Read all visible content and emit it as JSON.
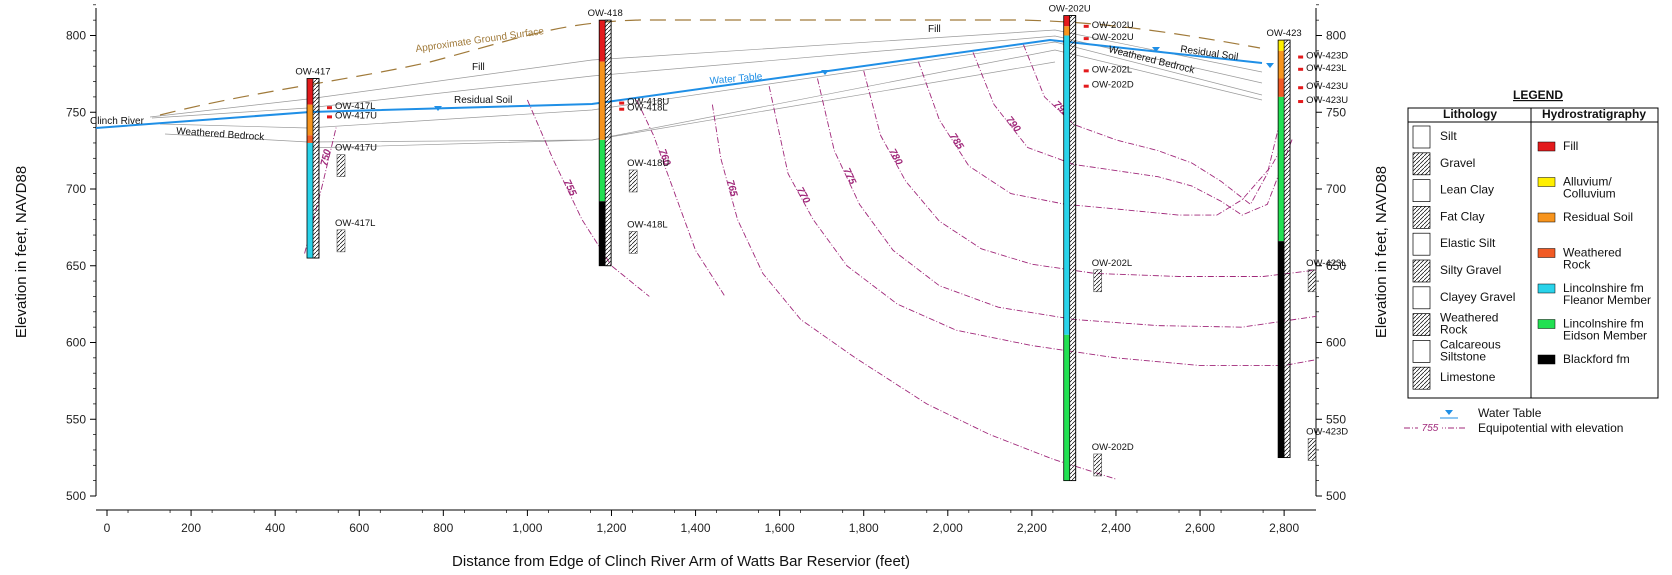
{
  "axes": {
    "x_label": "Distance from Edge of Clinch River Arm of Watts Bar Reservior (feet)",
    "y_label_left": "Elevation in feet, NAVD88",
    "y_label_right": "Elevation in feet, NAVD88",
    "x_range": [
      0,
      2800
    ],
    "y_range": [
      500,
      820
    ],
    "x_ticks": [
      "0",
      "200",
      "400",
      "600",
      "800",
      "1,000",
      "1,200",
      "1,400",
      "1,600",
      "1,800",
      "2,000",
      "2,200",
      "2,400",
      "2,600",
      "2,800"
    ],
    "y_ticks": [
      "500",
      "550",
      "600",
      "650",
      "700",
      "750",
      "800"
    ]
  },
  "colors": {
    "water_table": "#1f8fe6",
    "ground_surface": "#a07a3a",
    "equipotential": "#a0287a",
    "fill": "#e31a1c",
    "alluvium": "#ffef00",
    "residual_soil": "#f7941d",
    "weathered_rock": "#f15a24",
    "lincolnshire_fleanor": "#29d3ea",
    "lincolnshire_eidson": "#22e052",
    "blackford": "#000000"
  },
  "annotations": {
    "ground_surface": "Approximate Ground Surface",
    "water_table": "Water Table",
    "clinch_river": "Clinch River",
    "fill_1": "Fill",
    "fill_2": "Fill",
    "residual_soil_1": "Residual Soil",
    "residual_soil_2": "Residual Soil",
    "weathered_bedrock_1": "Weathered Bedrock",
    "weathered_bedrock_2": "Weathered Bedrock"
  },
  "wells": [
    {
      "name": "OW-417",
      "x": 490,
      "top": 772,
      "bottom": 655,
      "units": [
        {
          "from": 772,
          "to": 755,
          "color": "fill"
        },
        {
          "from": 755,
          "to": 735,
          "color": "residual_soil"
        },
        {
          "from": 735,
          "to": 730,
          "color": "weathered_rock"
        },
        {
          "from": 730,
          "to": 655,
          "color": "lincolnshire_fleanor"
        }
      ],
      "screens": [
        {
          "name": "OW-417L",
          "elev": 752
        },
        {
          "name": "OW-417U",
          "elev": 746
        },
        {
          "name": "OW-417U",
          "elev": 725
        },
        {
          "name": "OW-417L",
          "elev": 676
        }
      ]
    },
    {
      "name": "OW-418",
      "x": 1185,
      "top": 810,
      "bottom": 650,
      "units": [
        {
          "from": 810,
          "to": 783,
          "color": "fill"
        },
        {
          "from": 783,
          "to": 732,
          "color": "residual_soil"
        },
        {
          "from": 732,
          "to": 692,
          "color": "lincolnshire_eidson"
        },
        {
          "from": 692,
          "to": 650,
          "color": "blackford"
        }
      ],
      "screens": [
        {
          "name": "OW-418U",
          "elev": 755
        },
        {
          "name": "OW-418L",
          "elev": 751
        },
        {
          "name": "OW-418U",
          "elev": 715
        },
        {
          "name": "OW-418L",
          "elev": 675
        }
      ]
    },
    {
      "name": "OW-202U",
      "x": 2290,
      "top": 813,
      "bottom": 510,
      "units": [
        {
          "from": 813,
          "to": 806,
          "color": "fill"
        },
        {
          "from": 806,
          "to": 800,
          "color": "residual_soil"
        },
        {
          "from": 800,
          "to": 605,
          "color": "lincolnshire_fleanor"
        },
        {
          "from": 605,
          "to": 510,
          "color": "lincolnshire_eidson"
        }
      ],
      "screens": [
        {
          "name": "OW-202U",
          "elev": 805
        },
        {
          "name": "OW-202U",
          "elev": 797
        },
        {
          "name": "OW-202L",
          "elev": 776
        },
        {
          "name": "OW-202D",
          "elev": 766
        },
        {
          "name": "OW-202L",
          "elev": 650
        },
        {
          "name": "OW-202D",
          "elev": 530
        }
      ]
    },
    {
      "name": "OW-423",
      "x": 2800,
      "top": 797,
      "bottom": 525,
      "units": [
        {
          "from": 797,
          "to": 790,
          "color": "alluvium"
        },
        {
          "from": 790,
          "to": 772,
          "color": "residual_soil"
        },
        {
          "from": 772,
          "to": 760,
          "color": "weathered_rock"
        },
        {
          "from": 760,
          "to": 666,
          "color": "lincolnshire_eidson"
        },
        {
          "from": 666,
          "to": 525,
          "color": "blackford"
        }
      ],
      "screens": [
        {
          "name": "OW-423D",
          "elev": 785
        },
        {
          "name": "OW-423L",
          "elev": 777
        },
        {
          "name": "OW-423U",
          "elev": 765
        },
        {
          "name": "OW-423U",
          "elev": 756
        },
        {
          "name": "OW-423L",
          "elev": 650
        },
        {
          "name": "OW-423D",
          "elev": 540
        }
      ]
    }
  ],
  "equipotentials": [
    {
      "label": "750",
      "points": [
        [
          470,
          658
        ],
        [
          510,
          700
        ],
        [
          545,
          740
        ]
      ]
    },
    {
      "label": "755",
      "points": [
        [
          1000,
          758
        ],
        [
          1060,
          720
        ],
        [
          1130,
          680
        ],
        [
          1200,
          650
        ],
        [
          1290,
          630
        ]
      ]
    },
    {
      "label": "760",
      "points": [
        [
          1260,
          758
        ],
        [
          1300,
          735
        ],
        [
          1340,
          705
        ],
        [
          1400,
          660
        ],
        [
          1470,
          630
        ]
      ]
    },
    {
      "label": "765",
      "points": [
        [
          1440,
          755
        ],
        [
          1460,
          720
        ],
        [
          1500,
          680
        ],
        [
          1560,
          645
        ],
        [
          1650,
          615
        ],
        [
          1780,
          590
        ],
        [
          1950,
          560
        ],
        [
          2100,
          540
        ],
        [
          2250,
          524
        ],
        [
          2400,
          511
        ]
      ]
    },
    {
      "label": "770",
      "points": [
        [
          1575,
          767
        ],
        [
          1620,
          710
        ],
        [
          1680,
          680
        ],
        [
          1760,
          650
        ],
        [
          1880,
          625
        ],
        [
          2020,
          608
        ],
        [
          2200,
          598
        ],
        [
          2400,
          590
        ],
        [
          2600,
          585
        ],
        [
          2800,
          585
        ],
        [
          2900,
          590
        ]
      ]
    },
    {
      "label": "775",
      "points": [
        [
          1690,
          772
        ],
        [
          1730,
          725
        ],
        [
          1790,
          690
        ],
        [
          1870,
          660
        ],
        [
          1980,
          637
        ],
        [
          2120,
          623
        ],
        [
          2300,
          615
        ],
        [
          2500,
          611
        ],
        [
          2700,
          610
        ],
        [
          2900,
          618
        ]
      ]
    },
    {
      "label": "780",
      "points": [
        [
          1800,
          777
        ],
        [
          1840,
          735
        ],
        [
          1900,
          705
        ],
        [
          1980,
          679
        ],
        [
          2080,
          661
        ],
        [
          2200,
          651
        ],
        [
          2350,
          645
        ],
        [
          2550,
          643
        ],
        [
          2750,
          643
        ],
        [
          2900,
          648
        ]
      ]
    },
    {
      "label": "785",
      "points": [
        [
          1930,
          783
        ],
        [
          1980,
          745
        ],
        [
          2050,
          715
        ],
        [
          2150,
          697
        ],
        [
          2280,
          690
        ],
        [
          2400,
          687
        ],
        [
          2550,
          683
        ],
        [
          2640,
          683
        ],
        [
          2700,
          693
        ],
        [
          2770,
          715
        ],
        [
          2800,
          730
        ]
      ]
    },
    {
      "label": "790",
      "points": [
        [
          2060,
          789
        ],
        [
          2110,
          755
        ],
        [
          2190,
          727
        ],
        [
          2300,
          716
        ],
        [
          2400,
          712
        ],
        [
          2500,
          708
        ],
        [
          2580,
          702
        ],
        [
          2650,
          692
        ],
        [
          2700,
          683
        ],
        [
          2760,
          690
        ],
        [
          2820,
          733
        ]
      ]
    },
    {
      "label": "795",
      "points": [
        [
          2180,
          794
        ],
        [
          2230,
          760
        ],
        [
          2300,
          742
        ],
        [
          2400,
          732
        ],
        [
          2500,
          725
        ],
        [
          2580,
          717
        ],
        [
          2650,
          705
        ],
        [
          2720,
          690
        ],
        [
          2760,
          710
        ],
        [
          2800,
          755
        ]
      ]
    }
  ],
  "contour_label_elevation": "795",
  "legend": {
    "title": "LEGEND",
    "lithology_header": "Lithology",
    "hydro_header": "Hydrostratigraphy",
    "lithology": [
      "Silt",
      "Gravel",
      "Lean Clay",
      "Fat Clay",
      "Elastic Silt",
      "Silty Gravel",
      "Clayey Gravel",
      "Weathered\nRock",
      "Calcareous\nSiltstone",
      "Limestone"
    ],
    "hydro": [
      {
        "label": "Fill",
        "color": "fill"
      },
      {
        "label": "Alluvium/\nColluvium",
        "color": "alluvium"
      },
      {
        "label": "Residual Soil",
        "color": "residual_soil"
      },
      {
        "label": "Weathered\nRock",
        "color": "weathered_rock"
      },
      {
        "label": "Lincolnshire fm\nFleanor Member",
        "color": "lincolnshire_fleanor"
      },
      {
        "label": "Lincolnshire fm\nEidson Member",
        "color": "lincolnshire_eidson"
      },
      {
        "label": "Blackford fm",
        "color": "blackford"
      }
    ],
    "water_table": "Water Table",
    "equipotential_sample": "755",
    "equipotential": "Equipotential with elevation"
  }
}
